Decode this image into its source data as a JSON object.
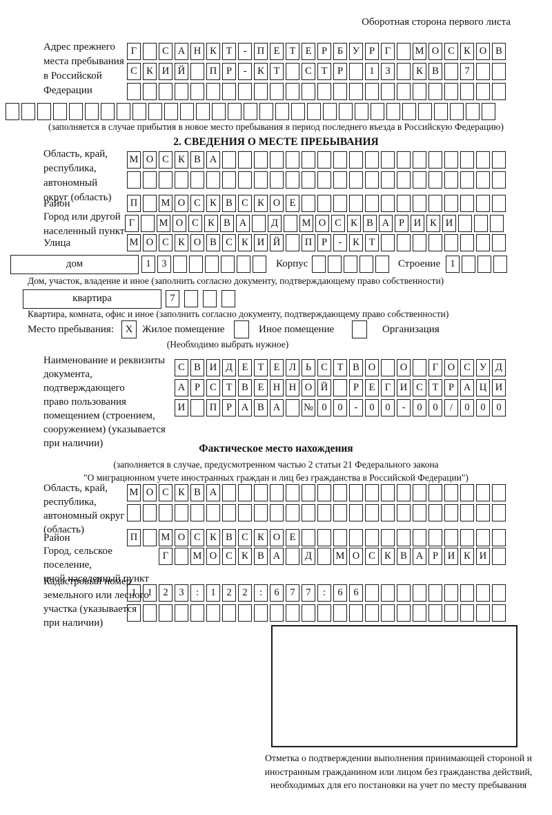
{
  "title": "Оборотная сторона первого листа",
  "prev_address": {
    "label": "Адрес прежнего\nместа пребывания\nв Российской\nФедерации",
    "rows": [
      {
        "chars": "Г САНКТ-ПЕТЕРБУРГ МОСКОВ",
        "len": 24
      },
      {
        "chars": "СКИЙ ПР-КТ СТР 13 КВ 7",
        "len": 24
      },
      {
        "chars": "",
        "len": 24
      },
      {
        "chars": "",
        "len": 31
      }
    ],
    "note": "(заполняется в случае прибытия в новое место пребывания в период последнего въезда в Российскую Федерацию)"
  },
  "section2": {
    "header": "2. СВЕДЕНИЯ О МЕСТЕ ПРЕБЫВАНИЯ",
    "region": {
      "label": "Область, край,\nреспублика,\nавтономный\nокруг (область)",
      "rows": [
        {
          "chars": "МОСКВА",
          "len": 24
        },
        {
          "chars": "",
          "len": 24
        }
      ]
    },
    "district": {
      "label": "Район",
      "row": {
        "chars": "П МОСКВСКОЕ",
        "len": 24
      }
    },
    "city": {
      "label": "Город или другой\nнаселенный пункт",
      "row": {
        "chars": "Г МОСКВА Д МОСКВАРИКИ",
        "len": 24
      }
    },
    "street": {
      "label": "Улица",
      "row": {
        "chars": "МОСКОВСКИЙ ПР-КТ",
        "len": 24
      }
    },
    "house": {
      "label": "дом",
      "row": {
        "chars": "13",
        "len": 8
      }
    },
    "building": {
      "label": "Корпус",
      "row": {
        "chars": "",
        "len": 5
      }
    },
    "structure": {
      "label": "Строение",
      "row": {
        "chars": "1",
        "len": 4
      }
    },
    "house_note": "Дом, участок, владение и иное (заполнить согласно документу, подтверждающему право собственности)",
    "apartment": {
      "label": "квартира",
      "row": {
        "chars": "7",
        "len": 4
      }
    },
    "apartment_note": "Квартира, комната, офис и иное (заполнить согласно документу, подтверждающему право собственности)",
    "residence_type": {
      "label": "Место пребывания:",
      "options": [
        {
          "label": "Жилое помещение",
          "value": "X"
        },
        {
          "label": "Иное помещение",
          "value": ""
        },
        {
          "label": "Организация",
          "value": ""
        }
      ],
      "note": "(Необходимо выбрать нужное)"
    },
    "document": {
      "label": "Наименование и реквизиты\nдокумента, подтверждающего\nправо пользования\nпомещением (строением,\nсооружением) (указывается\nпри наличии)",
      "rows": [
        {
          "chars": "СВИДЕТЕЛЬСТВО О ГОСУД",
          "len": 21
        },
        {
          "chars": "АРСТВЕННОЙ РЕГИСТРАЦИ",
          "len": 21
        },
        {
          "chars": "И ПРАВА №00-00-00/000",
          "len": 21
        }
      ]
    }
  },
  "actual_location": {
    "header": "Фактическое место нахождения",
    "note": "(заполняется в случае, предусмотренном частью 2 статьи 21 Федерального закона\n\"О миграционном учете иностранных граждан и лиц без гражданства в Российской Федерации\")",
    "region": {
      "label": "Область, край,\nреспублика,\nавтономный округ\n(область)",
      "rows": [
        {
          "chars": "МОСКВА",
          "len": 24
        },
        {
          "chars": "",
          "len": 24
        }
      ]
    },
    "district": {
      "label": "Район",
      "row": {
        "chars": "П МОСКВСКОЕ",
        "len": 24
      }
    },
    "city": {
      "label": "Город, сельское поселение,\nиной населенный пункт",
      "row": {
        "chars": "Г МОСКВА Д МОСКВАРИКИ",
        "len": 22
      }
    },
    "cadastral": {
      "label": "Кадастровый номер\nземельного или лесного\nучастка (указывается\nпри наличии)",
      "rows": [
        {
          "chars": "1123:122:677:66",
          "len": 24
        },
        {
          "chars": "",
          "len": 24
        }
      ]
    }
  },
  "confirmation": {
    "note": "Отметка о подтверждении выполнения принимающей стороной и иностранным гражданином или лицом без гражданства действий, необходимых для его постановки на учет по месту пребывания"
  }
}
